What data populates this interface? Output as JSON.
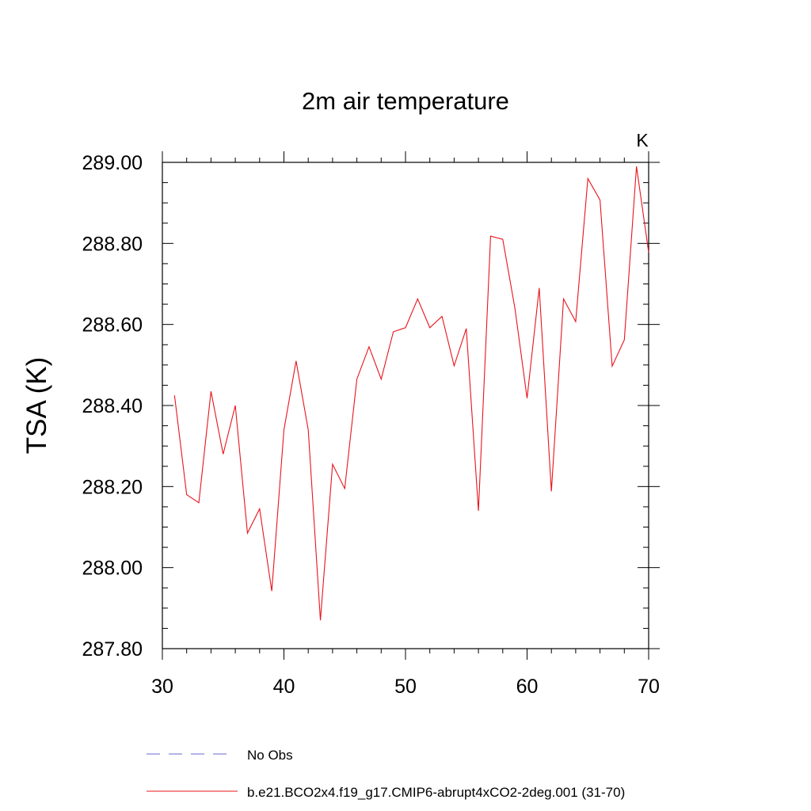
{
  "chart_data": {
    "type": "line",
    "title": "2m air temperature",
    "units_label": "K",
    "ylabel": "TSA  (K)",
    "xlabel": "",
    "xlim": [
      30,
      70
    ],
    "ylim": [
      287.8,
      289.0
    ],
    "x_ticks": [
      30,
      40,
      50,
      60,
      70
    ],
    "y_ticks": [
      "287.80",
      "288.00",
      "288.20",
      "288.40",
      "288.60",
      "288.80",
      "289.00"
    ],
    "series": [
      {
        "name": "b.e21.BCO2x4.f19_g17.CMIP6-abrupt4xCO2-2deg.001 (31-70)",
        "color": "#e8141c",
        "x": [
          31,
          32,
          33,
          34,
          35,
          36,
          37,
          38,
          39,
          40,
          41,
          42,
          43,
          44,
          45,
          46,
          47,
          48,
          49,
          50,
          51,
          52,
          53,
          54,
          55,
          56,
          57,
          58,
          59,
          60,
          61,
          62,
          63,
          64,
          65,
          66,
          67,
          68,
          69,
          70
        ],
        "values": [
          288.425,
          288.18,
          288.16,
          288.435,
          288.28,
          288.4,
          288.085,
          288.145,
          287.942,
          288.34,
          288.51,
          288.34,
          287.87,
          288.255,
          288.195,
          288.465,
          288.545,
          288.465,
          288.582,
          288.592,
          288.663,
          288.592,
          288.62,
          288.498,
          288.59,
          288.14,
          288.818,
          288.81,
          288.64,
          288.418,
          288.69,
          288.188,
          288.663,
          288.607,
          288.96,
          288.907,
          288.497,
          288.562,
          288.99,
          288.778
        ]
      }
    ],
    "legend": {
      "position": "bottom",
      "entries": [
        {
          "label": "No Obs",
          "color": "#6a6ad0",
          "style": "dashed"
        },
        {
          "label": "b.e21.BCO2x4.f19_g17.CMIP6-abrupt4xCO2-2deg.001 (31-70)",
          "color": "#e8141c",
          "style": "solid"
        }
      ]
    }
  }
}
